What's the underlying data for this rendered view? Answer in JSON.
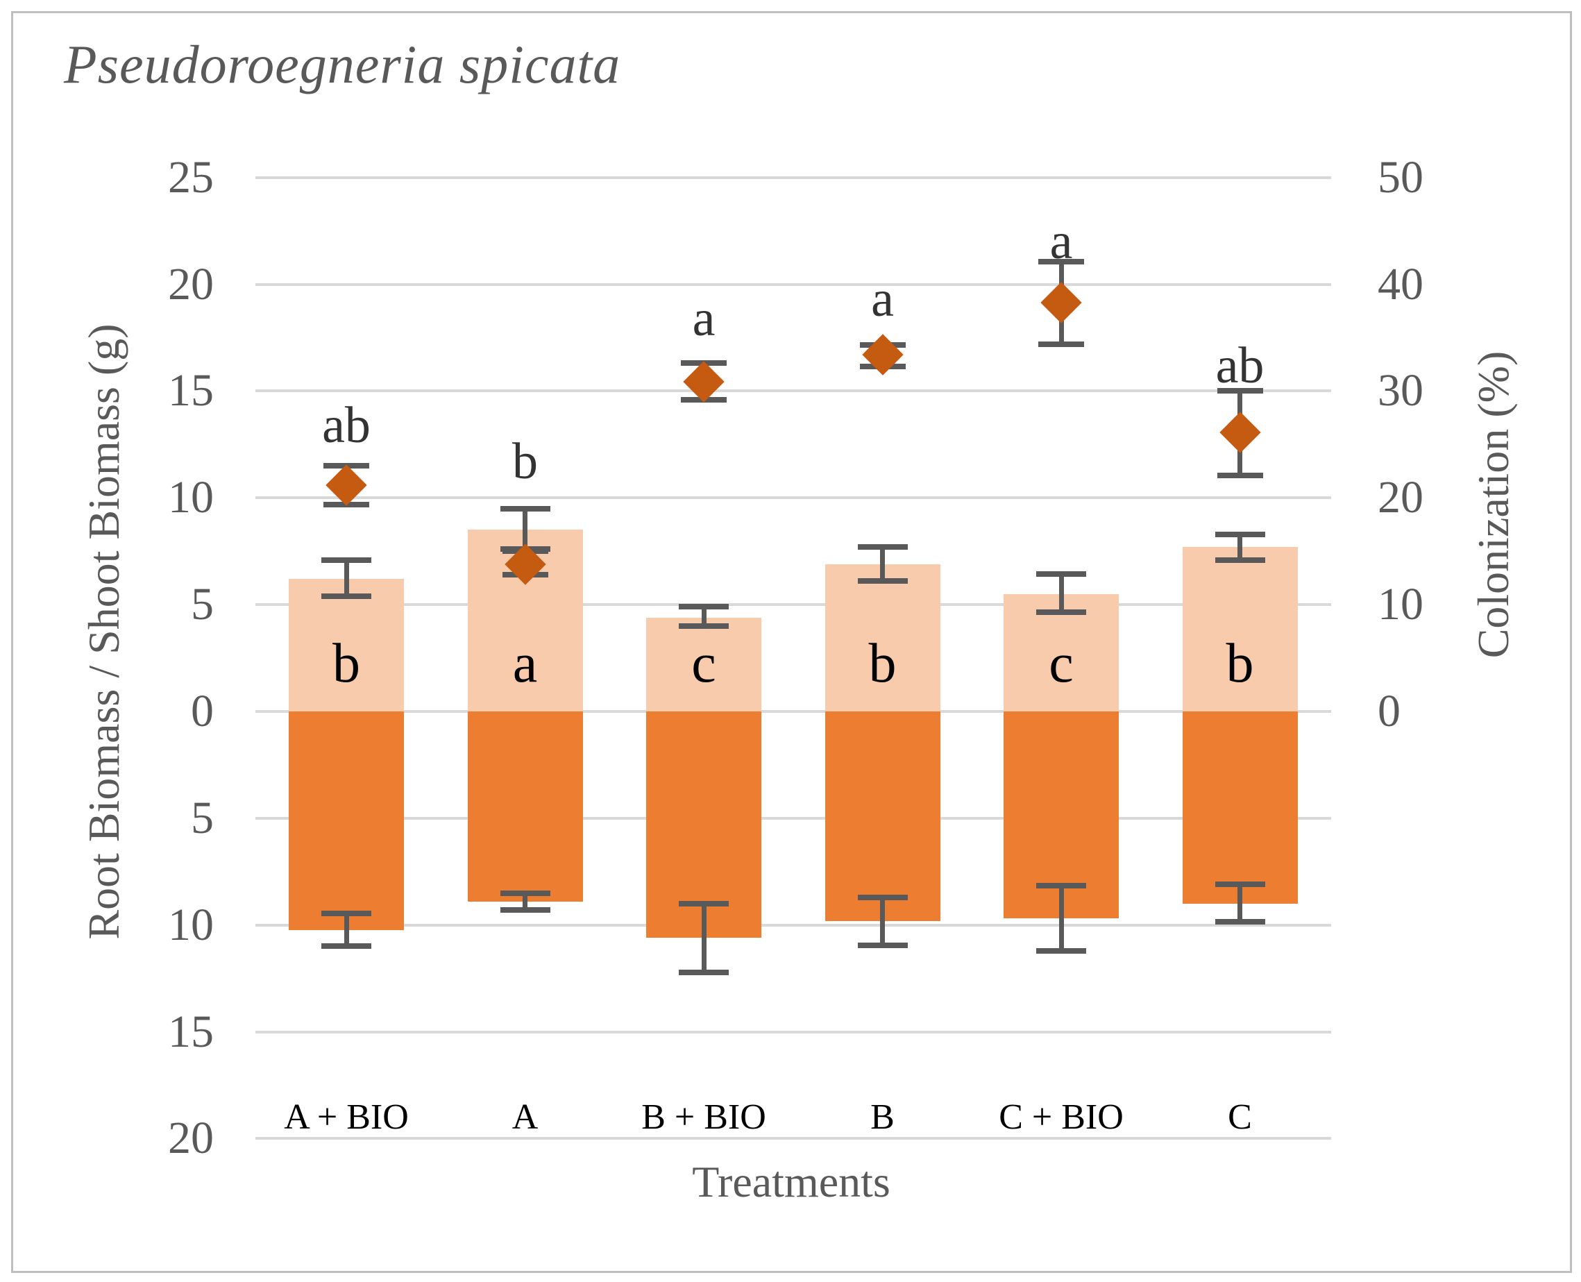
{
  "figure": {
    "title": "Pseudoroegneria spicata",
    "background": "#ffffff",
    "border_color": "#bfbfbf"
  },
  "chart_data": {
    "type": "bar",
    "title": "Pseudoroegneria spicata",
    "xlabel": "Treatments",
    "ylabel_left": "Root Biomass / Shoot Biomass (g)",
    "ylabel_right": "Colonization (%)",
    "categories": [
      "A + BIO",
      "A",
      "B + BIO",
      "B",
      "C + BIO",
      "C"
    ],
    "left_axis": {
      "ticks": [
        25,
        20,
        15,
        10,
        5,
        0,
        -5,
        -10,
        -15,
        -20
      ],
      "tick_labels": [
        "25",
        "20",
        "15",
        "10",
        "5",
        "0",
        "5",
        "10",
        "15",
        "20"
      ],
      "range": [
        25,
        -20
      ],
      "note": "values below 0 are root biomass plotted downward"
    },
    "right_axis": {
      "ticks": [
        50,
        40,
        30,
        20,
        10,
        0
      ],
      "tick_labels": [
        "50",
        "40",
        "30",
        "20",
        "10",
        "0"
      ],
      "range": [
        50,
        0
      ],
      "maps_to_left_units": "percent / 2"
    },
    "grid": true,
    "series": [
      {
        "name": "Shoot biomass (g)",
        "type": "bar",
        "direction": "up",
        "color": "#f8cbad",
        "values": [
          6.2,
          8.5,
          4.4,
          6.9,
          5.5,
          7.7
        ],
        "err_up": [
          0.9,
          1.0,
          0.5,
          0.8,
          0.95,
          0.6
        ],
        "err_down": [
          0.8,
          0.9,
          0.4,
          0.8,
          0.85,
          0.6
        ],
        "letters": [
          "b",
          "a",
          "c",
          "b",
          "c",
          "b"
        ],
        "letter_y_left_units": 2.0
      },
      {
        "name": "Root biomass (g)",
        "type": "bar",
        "direction": "down",
        "color": "#ed7d31",
        "values": [
          -10.25,
          -8.9,
          -10.6,
          -9.8,
          -9.7,
          -9.0
        ],
        "err_up": [
          0.8,
          0.4,
          1.6,
          1.1,
          1.55,
          0.9
        ],
        "err_down": [
          0.75,
          0.4,
          1.62,
          1.15,
          1.5,
          0.85
        ]
      },
      {
        "name": "Colonization (%)",
        "type": "scatter",
        "marker": "diamond",
        "axis": "right",
        "color": "#c55a11",
        "values": [
          21.2,
          13.8,
          30.9,
          33.4,
          38.3,
          26.1
        ],
        "err_up": [
          1.8,
          1.2,
          1.7,
          0.9,
          3.8,
          3.9
        ],
        "err_down": [
          1.8,
          1.0,
          1.7,
          1.1,
          3.9,
          4.0
        ],
        "letters": [
          "ab",
          "b",
          "a",
          "a",
          "a",
          "ab"
        ],
        "letter_y_pct": [
          26.4,
          23.0,
          36.4,
          38.2,
          43.6,
          32.0
        ]
      }
    ],
    "colors": {
      "gridline": "#d9d9d9",
      "error_bars": "#595959",
      "axis_text": "#595959",
      "category_text": "#000000"
    },
    "legend": "none"
  }
}
